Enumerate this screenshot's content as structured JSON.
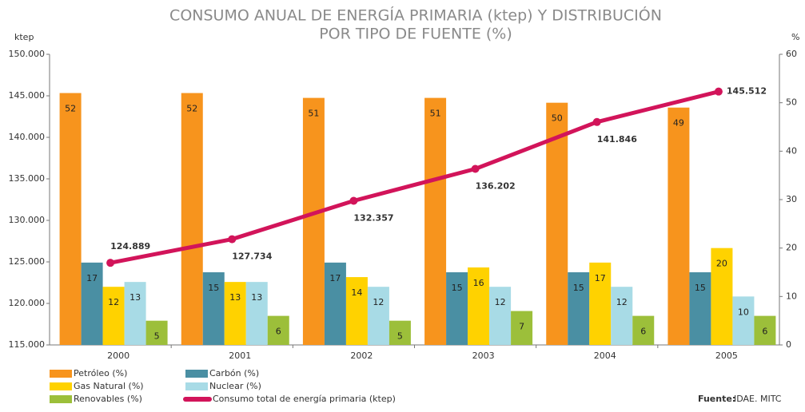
{
  "chart_data": {
    "type": "bar",
    "title": [
      "CONSUMO ANUAL DE ENERGÍA PRIMARIA (ktep) Y  DISTRIBUCIÓN",
      "POR TIPO DE FUENTE (%)"
    ],
    "y_label": "ktep",
    "y2_label": "%",
    "source_label": "Fuente:",
    "source_text": "IDAE. MITC",
    "categories": [
      "2000",
      "2001",
      "2002",
      "2003",
      "2004",
      "2005"
    ],
    "ylim": [
      115000,
      150000
    ],
    "yticks": [
      {
        "value": 115000,
        "label": "115.000"
      },
      {
        "value": 120000,
        "label": "120.000"
      },
      {
        "value": 125000,
        "label": "125.000"
      },
      {
        "value": 130000,
        "label": "130.000"
      },
      {
        "value": 135000,
        "label": "135.000"
      },
      {
        "value": 140000,
        "label": "140.000"
      },
      {
        "value": 145000,
        "label": "145.000"
      },
      {
        "value": 150000,
        "label": "150.000"
      }
    ],
    "y2lim": [
      0,
      60
    ],
    "y2ticks": [
      0,
      10,
      20,
      30,
      40,
      50,
      60
    ],
    "series": [
      {
        "name": "Petróleo (%)",
        "type": "bar",
        "axis": "y2",
        "color": "#f7941d",
        "values": [
          52,
          52,
          51,
          51,
          50,
          49
        ]
      },
      {
        "name": "Carbón (%)",
        "type": "bar",
        "axis": "y2",
        "color": "#4a8fa3",
        "values": [
          17,
          15,
          17,
          15,
          15,
          15
        ]
      },
      {
        "name": "Gas Natural (%)",
        "type": "bar",
        "axis": "y2",
        "color": "#ffd200",
        "values": [
          12,
          13,
          14,
          16,
          17,
          20
        ]
      },
      {
        "name": "Nuclear (%)",
        "type": "bar",
        "axis": "y2",
        "color": "#a8dbe6",
        "values": [
          13,
          13,
          12,
          12,
          12,
          10
        ]
      },
      {
        "name": "Renovables (%)",
        "type": "bar",
        "axis": "y2",
        "color": "#9cbf3a",
        "values": [
          5,
          6,
          5,
          7,
          6,
          6
        ]
      },
      {
        "name": "Consumo total de energía primaria (ktep)",
        "type": "line",
        "axis": "y",
        "color": "#d2145a",
        "values": [
          124889,
          127734,
          132357,
          136202,
          141846,
          145512
        ],
        "value_labels": [
          "124.889",
          "127.734",
          "132.357",
          "136.202",
          "141.846",
          "145.512"
        ]
      }
    ]
  }
}
